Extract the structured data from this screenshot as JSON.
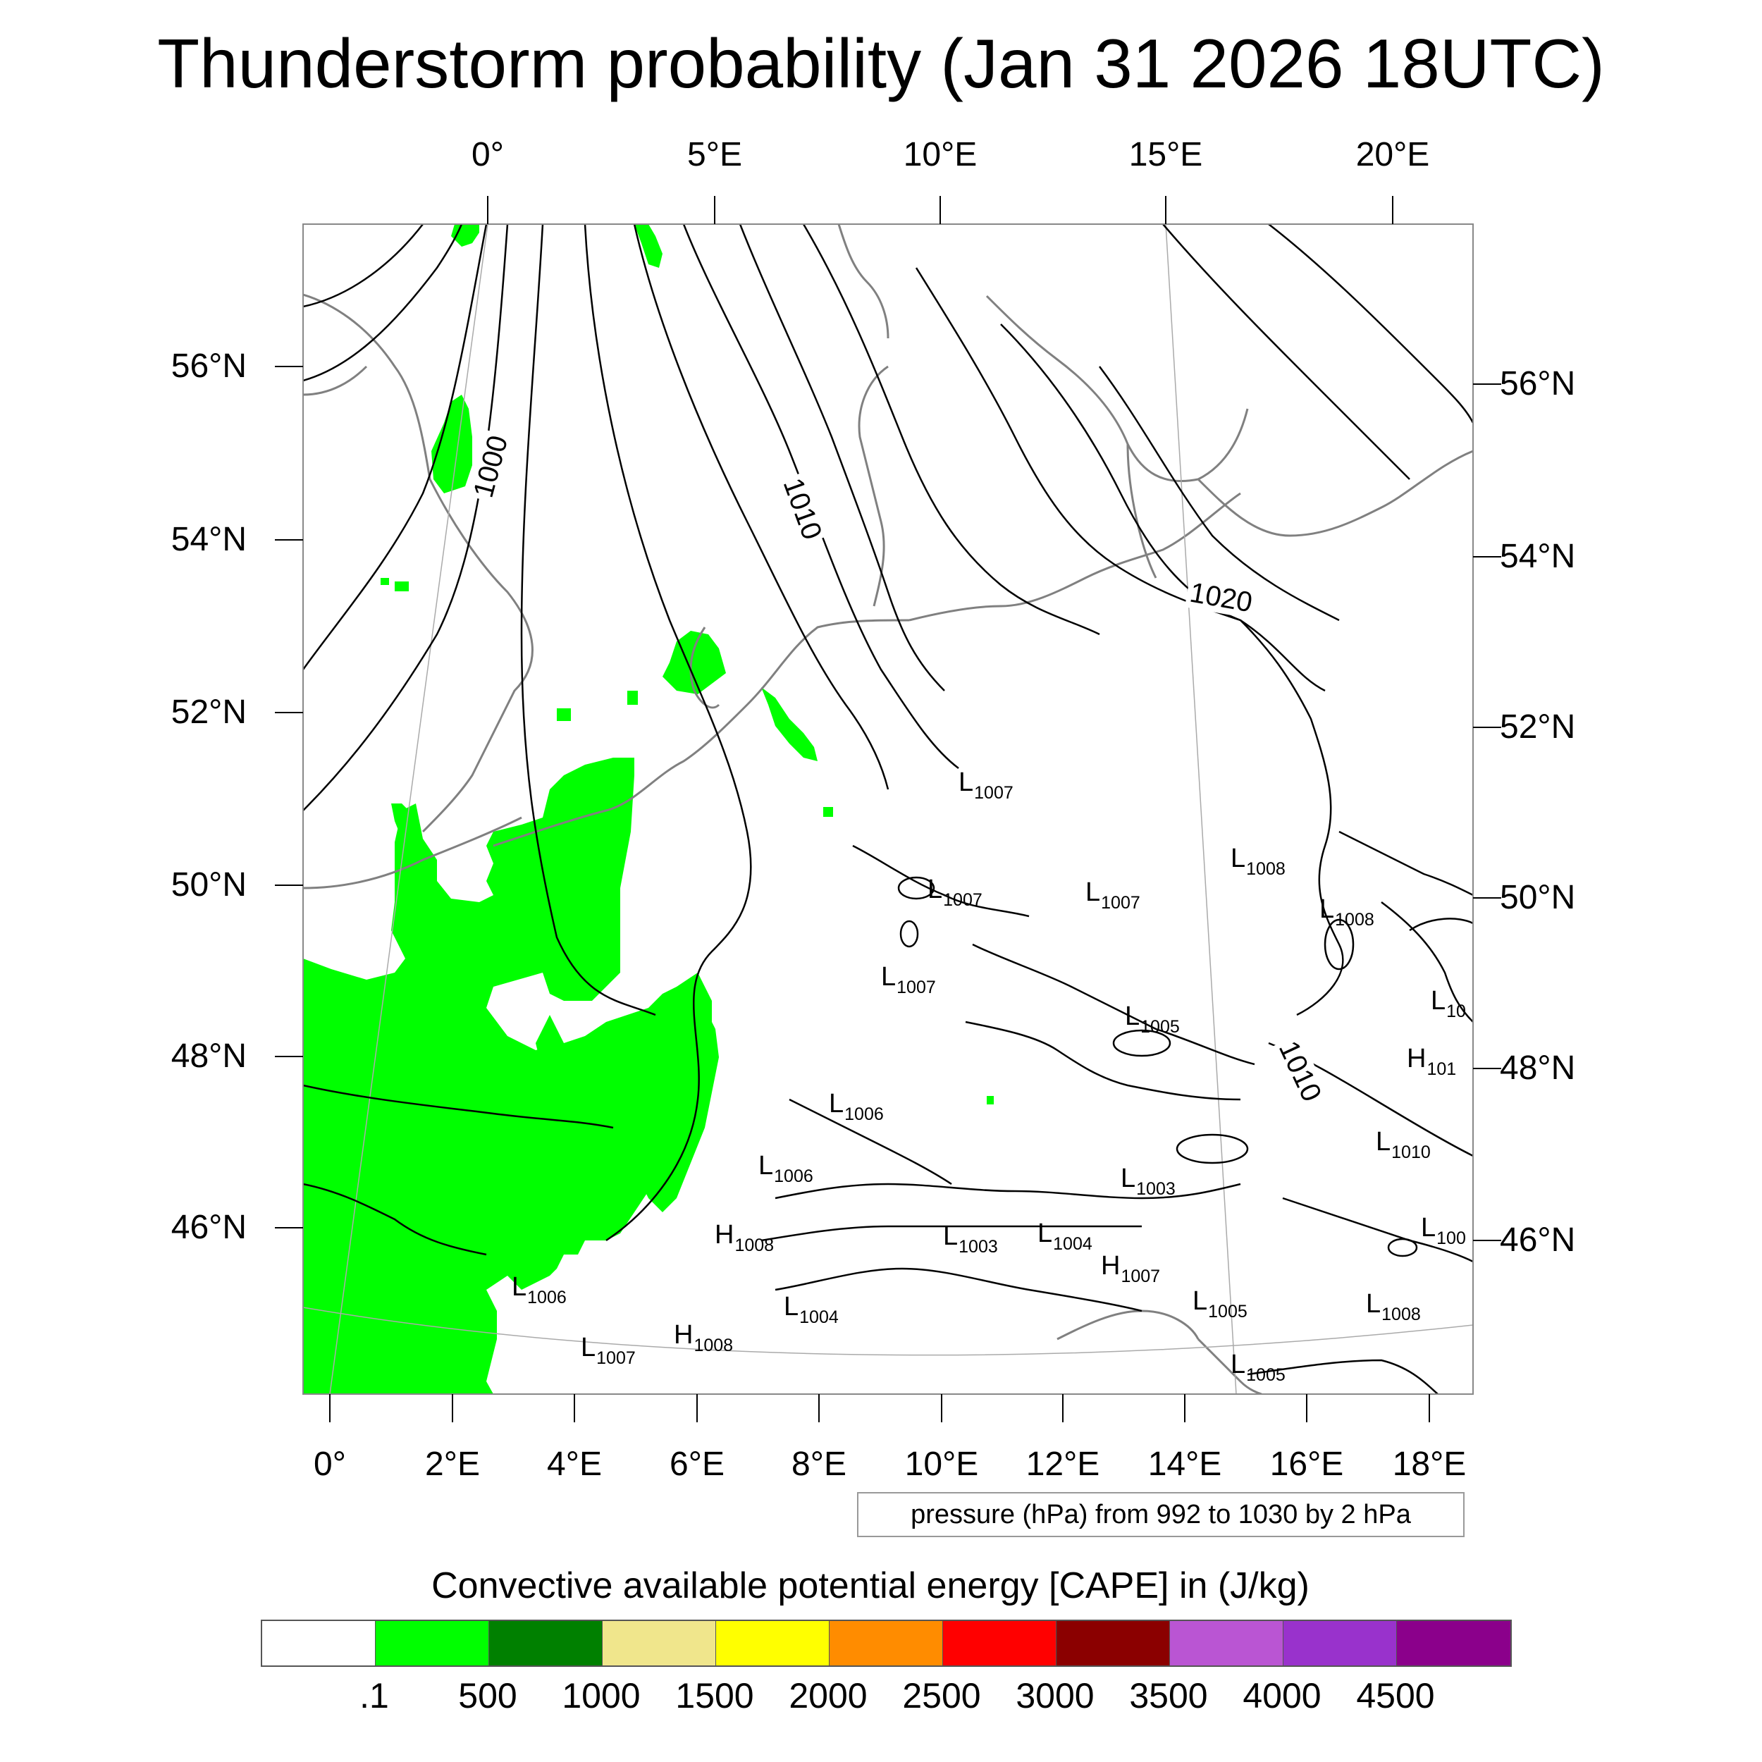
{
  "title": "Thunderstorm probability (Jan 31 2026 18UTC)",
  "top_longitudes": [
    "0°",
    "5°E",
    "10°E",
    "15°E",
    "20°E"
  ],
  "bottom_longitudes": [
    "0°",
    "2°E",
    "4°E",
    "6°E",
    "8°E",
    "10°E",
    "12°E",
    "14°E",
    "16°E",
    "18°E"
  ],
  "left_latitudes": [
    "56°N",
    "54°N",
    "52°N",
    "50°N",
    "48°N",
    "46°N"
  ],
  "right_latitudes": [
    "56°N",
    "54°N",
    "52°N",
    "50°N",
    "48°N",
    "46°N"
  ],
  "isobar_labels": [
    "1000",
    "1010",
    "1020",
    "1010"
  ],
  "pressure_systems": [
    {
      "letter": "L",
      "value": "1007"
    },
    {
      "letter": "L",
      "value": "1008"
    },
    {
      "letter": "L",
      "value": "1007"
    },
    {
      "letter": "L",
      "value": "1007"
    },
    {
      "letter": "L",
      "value": "1008"
    },
    {
      "letter": "L",
      "value": "1007"
    },
    {
      "letter": "L",
      "value": "1005"
    },
    {
      "letter": "L",
      "value": "10"
    },
    {
      "letter": "H",
      "value": "101"
    },
    {
      "letter": "L",
      "value": "1006"
    },
    {
      "letter": "L",
      "value": "1006"
    },
    {
      "letter": "L",
      "value": "1010"
    },
    {
      "letter": "L",
      "value": "1003"
    },
    {
      "letter": "H",
      "value": "1008"
    },
    {
      "letter": "L",
      "value": "1003"
    },
    {
      "letter": "L",
      "value": "1004"
    },
    {
      "letter": "L",
      "value": "100"
    },
    {
      "letter": "H",
      "value": "1007"
    },
    {
      "letter": "L",
      "value": "1006"
    },
    {
      "letter": "L",
      "value": "1004"
    },
    {
      "letter": "L",
      "value": "1005"
    },
    {
      "letter": "L",
      "value": "1008"
    },
    {
      "letter": "H",
      "value": "1008"
    },
    {
      "letter": "L",
      "value": "1007"
    },
    {
      "letter": "L",
      "value": "1005"
    }
  ],
  "pressure_note": "pressure (hPa) from 992 to 1030 by 2 hPa",
  "colorbar": {
    "title": "Convective available potential energy [CAPE] in (J/kg)",
    "colors": [
      "#ffffff",
      "#00ff00",
      "#008000",
      "#f0e68c",
      "#ffff00",
      "#ff8c00",
      "#ff0000",
      "#8b0000",
      "#ba55d3",
      "#9932cc",
      "#8b008b"
    ],
    "labels": [
      ".1",
      "500",
      "1000",
      "1500",
      "2000",
      "2500",
      "3000",
      "3500",
      "4000",
      "4500"
    ]
  },
  "colors": {
    "cape_fill": "#00ff00",
    "isobar": "#000000",
    "coastline": "#808080"
  }
}
